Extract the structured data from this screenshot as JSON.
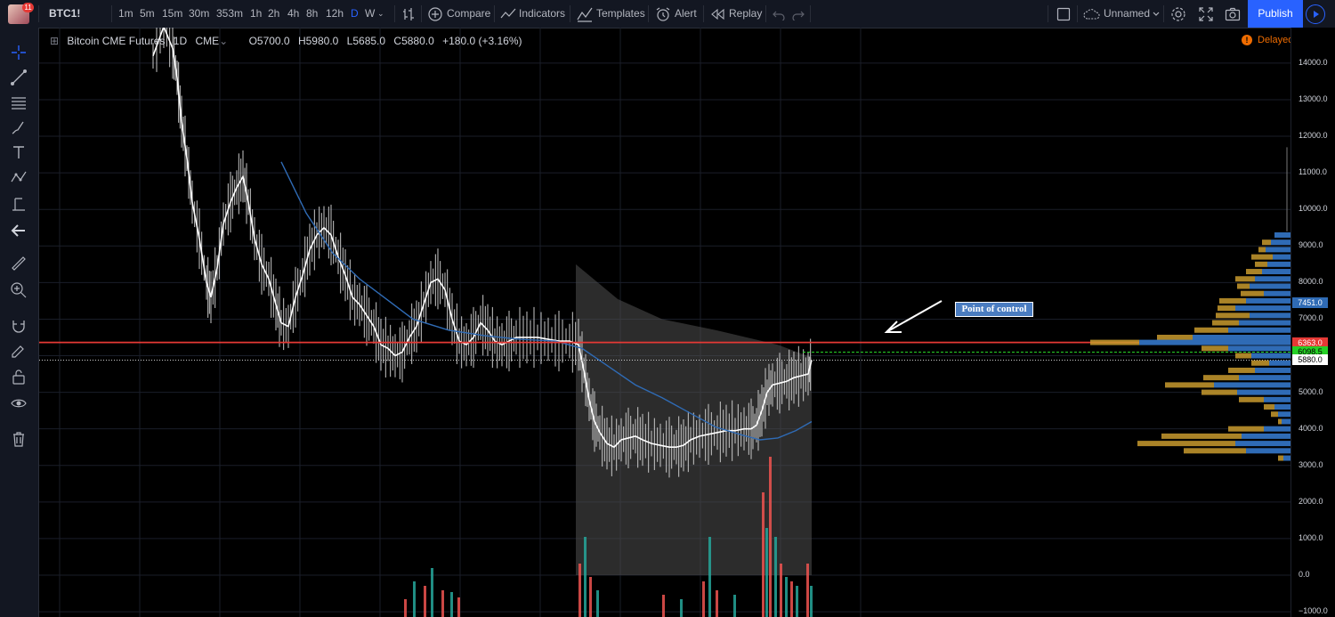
{
  "toolbar": {
    "badge_count": "11",
    "symbol": "BTC1!",
    "intervals": [
      "1m",
      "5m",
      "15m",
      "30m",
      "353m",
      "1h",
      "2h",
      "4h",
      "8h",
      "12h",
      "D",
      "W"
    ],
    "active_interval": "D",
    "compare": "Compare",
    "indicators": "Indicators",
    "templates": "Templates",
    "alert": "Alert",
    "replay": "Replay",
    "layout_name": "Unnamed",
    "publish": "Publish"
  },
  "legend": {
    "name": "Bitcoin CME Futures",
    "interval": "1D",
    "exchange": "CME",
    "open": "O5700.0",
    "high": "H5980.0",
    "low": "L5685.0",
    "close": "C5880.0",
    "change": "+180.0 (+3.16%)"
  },
  "status": {
    "delayed": "Delayed"
  },
  "annotation": {
    "text": "Point of control"
  },
  "price_axis": {
    "ticks": [
      "14000.0",
      "13000.0",
      "12000.0",
      "11000.0",
      "10000.0",
      "9000.0",
      "8000.0",
      "7000.0",
      "6000.0",
      "5000.0",
      "4000.0",
      "3000.0",
      "2000.0",
      "1000.0",
      "0.0",
      "−1000.0"
    ]
  },
  "price_labels": [
    {
      "value": "7451.0",
      "color": "#2f6bb5",
      "text_color": "#ffffff"
    },
    {
      "value": "6363.0",
      "color": "#e53935",
      "text_color": "#ffffff"
    },
    {
      "value": "6098.5",
      "color": "#26d026",
      "text_color": "#000000"
    },
    {
      "value": "5880.0",
      "color": "#ffffff",
      "text_color": "#000000"
    }
  ],
  "colors": {
    "ma_fast": "#ffffff",
    "ma_slow": "#2f6bb5",
    "poc_line": "#e53935",
    "vp_up": "#2f6bb5",
    "vp_down": "#c89a2e",
    "vol_up": "#26a69a",
    "vol_down": "#ef5350"
  }
}
